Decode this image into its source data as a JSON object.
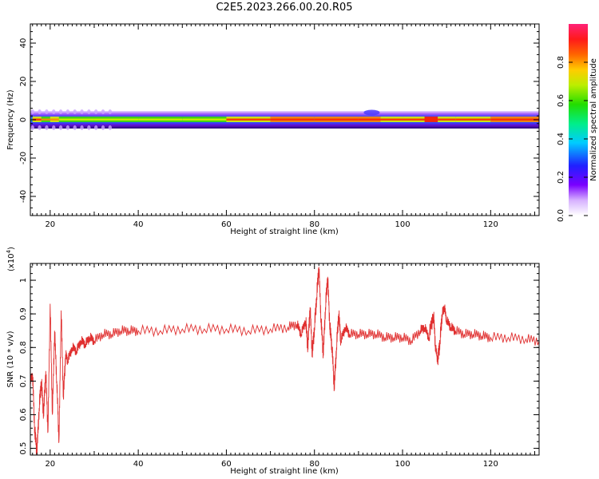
{
  "title": "C2E5.2023.266.00.20.R05",
  "colors": {
    "snr_line": "#e03030",
    "background": "#ffffff"
  },
  "chart_data": [
    {
      "type": "heatmap",
      "xlabel": "Height of straight line (km)",
      "ylabel": "Frequency (Hz)",
      "xlim": [
        15.5,
        131
      ],
      "ylim": [
        -50,
        50
      ],
      "x_ticks": [
        20,
        40,
        60,
        80,
        100,
        120
      ],
      "y_ticks": [
        -40,
        -20,
        0,
        20,
        40
      ],
      "colorbar": {
        "label": "Normalized spectral amplitude",
        "range": [
          0,
          1
        ],
        "ticks": [
          "0.0",
          "0.2",
          "0.4",
          "0.6",
          "0.8"
        ]
      },
      "band_peak_amplitude": [
        {
          "x": 16,
          "amp": 0.75
        },
        {
          "x": 18,
          "amp": 0.55
        },
        {
          "x": 20,
          "amp": 0.7
        },
        {
          "x": 22,
          "amp": 0.6
        },
        {
          "x": 30,
          "amp": 0.55
        },
        {
          "x": 40,
          "amp": 0.62
        },
        {
          "x": 50,
          "amp": 0.55
        },
        {
          "x": 60,
          "amp": 0.6
        },
        {
          "x": 70,
          "amp": 0.78
        },
        {
          "x": 80,
          "amp": 0.8
        },
        {
          "x": 90,
          "amp": 0.75
        },
        {
          "x": 95,
          "amp": 0.82
        },
        {
          "x": 100,
          "amp": 0.6
        },
        {
          "x": 105,
          "amp": 0.78
        },
        {
          "x": 108,
          "amp": 0.82
        },
        {
          "x": 112,
          "amp": 0.6
        },
        {
          "x": 120,
          "amp": 0.75
        },
        {
          "x": 131,
          "amp": 0.7
        }
      ]
    },
    {
      "type": "line",
      "xlabel": "Height of straight line (km)",
      "ylabel": "SNR (10 * v/v)",
      "y_multiplier_label": "(x10",
      "y_multiplier_exponent": "4",
      "xlim": [
        15.5,
        131
      ],
      "ylim": [
        0.48,
        1.05
      ],
      "x_ticks": [
        20,
        40,
        60,
        80,
        100,
        120
      ],
      "y_ticks": [
        0.5,
        0.6,
        0.7,
        0.8,
        0.9,
        1.0
      ],
      "series": [
        {
          "values": [
            [
              15.5,
              0.7
            ],
            [
              16.0,
              0.72
            ],
            [
              16.5,
              0.55
            ],
            [
              17.0,
              0.49
            ],
            [
              17.5,
              0.62
            ],
            [
              18.0,
              0.7
            ],
            [
              18.5,
              0.6
            ],
            [
              19.0,
              0.73
            ],
            [
              19.5,
              0.55
            ],
            [
              20.0,
              0.93
            ],
            [
              20.5,
              0.6
            ],
            [
              21.0,
              0.85
            ],
            [
              21.5,
              0.7
            ],
            [
              22.0,
              0.52
            ],
            [
              22.5,
              0.91
            ],
            [
              23.0,
              0.65
            ],
            [
              23.5,
              0.78
            ],
            [
              24.0,
              0.76
            ],
            [
              25.0,
              0.8
            ],
            [
              26.0,
              0.79
            ],
            [
              27.0,
              0.82
            ],
            [
              28.0,
              0.81
            ],
            [
              29.0,
              0.83
            ],
            [
              30.0,
              0.82
            ],
            [
              32.0,
              0.84
            ],
            [
              34.0,
              0.84
            ],
            [
              36.0,
              0.85
            ],
            [
              38.0,
              0.85
            ],
            [
              40.0,
              0.85
            ],
            [
              45.0,
              0.85
            ],
            [
              50.0,
              0.855
            ],
            [
              55.0,
              0.855
            ],
            [
              60.0,
              0.855
            ],
            [
              65.0,
              0.85
            ],
            [
              70.0,
              0.855
            ],
            [
              74.0,
              0.86
            ],
            [
              76.0,
              0.87
            ],
            [
              77.0,
              0.84
            ],
            [
              78.0,
              0.88
            ],
            [
              78.5,
              0.8
            ],
            [
              79.0,
              0.92
            ],
            [
              79.5,
              0.78
            ],
            [
              80.0,
              0.86
            ],
            [
              80.5,
              0.95
            ],
            [
              81.0,
              1.04
            ],
            [
              81.5,
              0.88
            ],
            [
              82.0,
              0.78
            ],
            [
              82.5,
              0.92
            ],
            [
              83.0,
              1.01
            ],
            [
              83.5,
              0.86
            ],
            [
              84.0,
              0.8
            ],
            [
              84.5,
              0.68
            ],
            [
              85.0,
              0.8
            ],
            [
              85.5,
              0.9
            ],
            [
              86.0,
              0.82
            ],
            [
              87.0,
              0.86
            ],
            [
              88.0,
              0.84
            ],
            [
              90.0,
              0.84
            ],
            [
              92.0,
              0.84
            ],
            [
              94.0,
              0.84
            ],
            [
              96.0,
              0.83
            ],
            [
              98.0,
              0.83
            ],
            [
              100.0,
              0.83
            ],
            [
              102.0,
              0.82
            ],
            [
              104.0,
              0.85
            ],
            [
              105.0,
              0.86
            ],
            [
              106.0,
              0.83
            ],
            [
              107.0,
              0.9
            ],
            [
              107.5,
              0.8
            ],
            [
              108.0,
              0.76
            ],
            [
              108.5,
              0.82
            ],
            [
              109.0,
              0.9
            ],
            [
              109.5,
              0.92
            ],
            [
              110.0,
              0.88
            ],
            [
              111.0,
              0.86
            ],
            [
              112.0,
              0.85
            ],
            [
              114.0,
              0.84
            ],
            [
              116.0,
              0.84
            ],
            [
              118.0,
              0.835
            ],
            [
              120.0,
              0.83
            ],
            [
              124.0,
              0.83
            ],
            [
              128.0,
              0.825
            ],
            [
              131.0,
              0.82
            ]
          ]
        }
      ]
    }
  ]
}
